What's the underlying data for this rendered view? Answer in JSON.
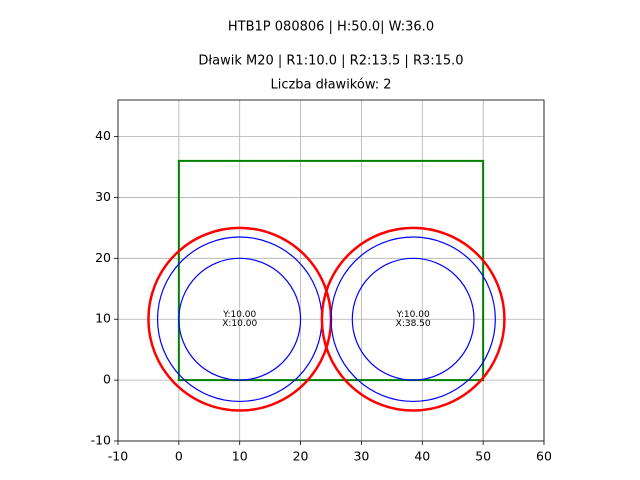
{
  "chart_data": {
    "type": "shapes",
    "titles": [
      "HTB1P 080806 | H:50.0| W:36.0",
      "Dławik M20 | R1:10.0 | R2:13.5 | R3:15.0",
      "Liczba dławików: 2"
    ],
    "xlim": [
      -10,
      60
    ],
    "ylim": [
      -10,
      46
    ],
    "xticks": [
      -10,
      0,
      10,
      20,
      30,
      40,
      50,
      60
    ],
    "yticks": [
      -10,
      0,
      10,
      20,
      30,
      40
    ],
    "grid": true,
    "rectangle": {
      "x": [
        0,
        50
      ],
      "y": [
        0,
        36
      ],
      "color": "green"
    },
    "ring_colors": [
      "blue",
      "blue",
      "red"
    ],
    "circles": [
      {
        "x": 10,
        "y": 10,
        "r": [
          10,
          13.5,
          15
        ],
        "labels": [
          "Y:10.00",
          "X:10.00"
        ]
      },
      {
        "x": 38.5,
        "y": 10,
        "r": [
          10,
          13.5,
          15
        ],
        "labels": [
          "Y:10.00",
          "X:38.50"
        ]
      }
    ]
  }
}
